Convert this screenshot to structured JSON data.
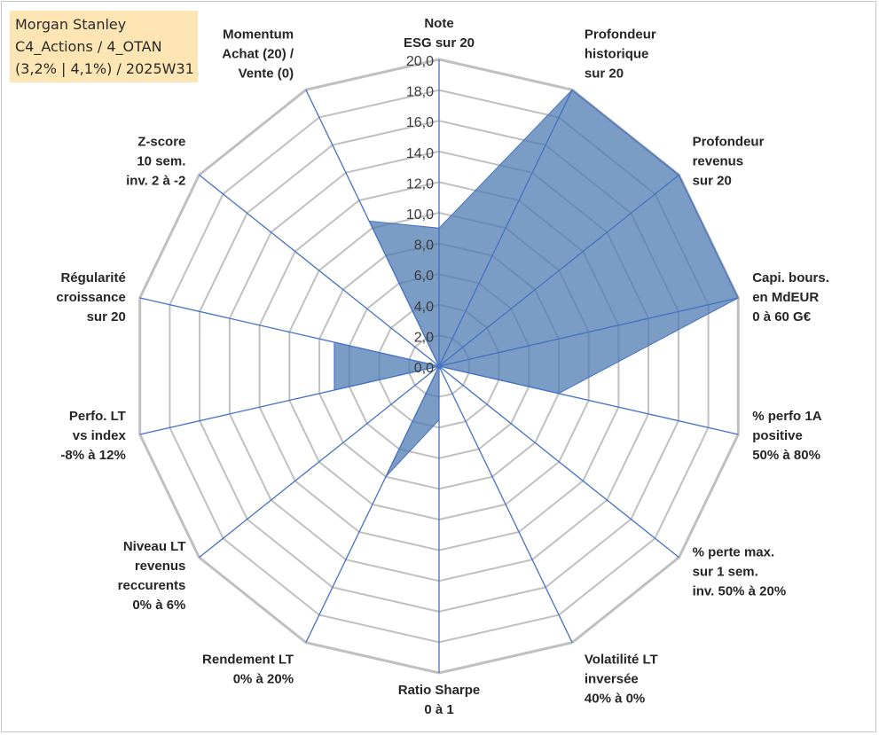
{
  "title_box": {
    "line1": "Morgan Stanley",
    "line2": "C4_Actions / 4_OTAN",
    "line3": "(3,2% | 4,1%) / 2025W31"
  },
  "colors": {
    "fill": "#4f7bb0",
    "fill_opacity": "0.75",
    "spoke": "#4472c4",
    "grid": "#c0c0c0",
    "title_bg": "#fde6b4"
  },
  "chart_data": {
    "type": "radar",
    "range": [
      0,
      20
    ],
    "tick_step": 2,
    "tick_labels": [
      "0,0",
      "2,0",
      "4,0",
      "6,0",
      "8,0",
      "10,0",
      "12,0",
      "14,0",
      "16,0",
      "18,0",
      "20,0"
    ],
    "axes": [
      [
        "Note",
        "ESG sur 20"
      ],
      [
        "Profondeur",
        "historique",
        "sur 20"
      ],
      [
        "Profondeur",
        "revenus",
        "sur 20"
      ],
      [
        "Capi. bours.",
        "en MdEUR",
        "0 à 60 G€"
      ],
      [
        "% perfo 1A",
        "positive",
        "50% à 80%"
      ],
      [
        "% perte max.",
        "sur 1 sem.",
        "inv. 50% à 20%"
      ],
      [
        "Volatilité LT",
        "inversée",
        "40% à 0%"
      ],
      [
        "Ratio Sharpe",
        "0 à 1"
      ],
      [
        "Rendement LT",
        "0% à 20%"
      ],
      [
        "Niveau LT",
        "revenus",
        "reccurents",
        "0% à 6%"
      ],
      [
        "Perfo. LT",
        "vs index",
        "-8% à 12%"
      ],
      [
        "Régularité",
        "croissance",
        "sur 20"
      ],
      [
        "Z-score",
        "10 sem.",
        "inv. 2 à -2"
      ],
      [
        "Momentum",
        "Achat (20) /",
        "Vente (0)"
      ]
    ],
    "series": [
      {
        "values": [
          9.0,
          20.0,
          20.0,
          20.0,
          8.0,
          0.0,
          0.0,
          3.5,
          8.0,
          0.0,
          7.0,
          7.0,
          0.0,
          10.5
        ]
      }
    ],
    "grid": true
  }
}
